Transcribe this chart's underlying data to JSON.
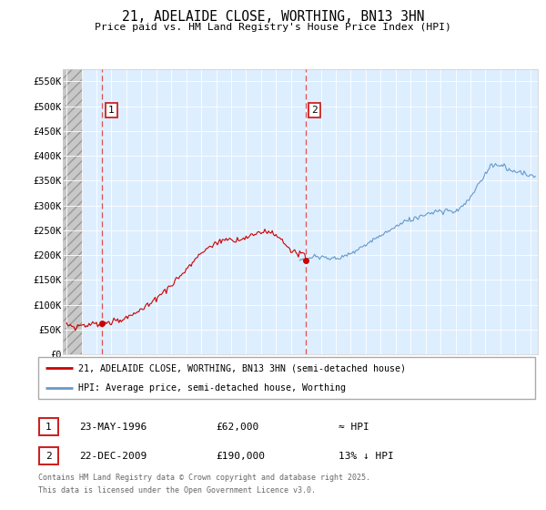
{
  "title_line1": "21, ADELAIDE CLOSE, WORTHING, BN13 3HN",
  "title_line2": "Price paid vs. HM Land Registry's House Price Index (HPI)",
  "background_plot": "#ddeeff",
  "grid_color": "#ffffff",
  "hpi_color": "#6699cc",
  "price_color": "#cc0000",
  "dashed_color": "#dd3333",
  "ylim_max": 575000,
  "yticks": [
    0,
    50000,
    100000,
    150000,
    200000,
    250000,
    300000,
    350000,
    400000,
    450000,
    500000,
    550000
  ],
  "ytick_labels": [
    "£0",
    "£50K",
    "£100K",
    "£150K",
    "£200K",
    "£250K",
    "£300K",
    "£350K",
    "£400K",
    "£450K",
    "£500K",
    "£550K"
  ],
  "xmin": 1993.75,
  "xmax": 2025.5,
  "hatch_end": 1995.1,
  "purchase1_x": 1996.39,
  "purchase1_y": 62000,
  "purchase2_x": 2009.98,
  "purchase2_y": 190000,
  "legend_line1": "21, ADELAIDE CLOSE, WORTHING, BN13 3HN (semi-detached house)",
  "legend_line2": "HPI: Average price, semi-detached house, Worthing",
  "footer1": "Contains HM Land Registry data © Crown copyright and database right 2025.",
  "footer2": "This data is licensed under the Open Government Licence v3.0.",
  "table_row1": [
    "1",
    "23-MAY-1996",
    "£62,000",
    "≈ HPI"
  ],
  "table_row2": [
    "2",
    "22-DEC-2009",
    "£190,000",
    "13% ↓ HPI"
  ]
}
